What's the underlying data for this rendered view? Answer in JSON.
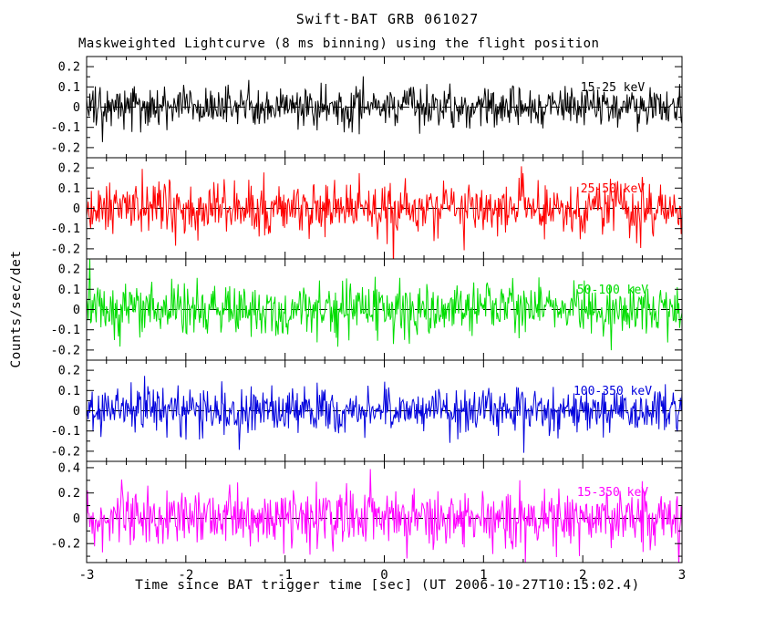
{
  "title": "Swift-BAT GRB 061027",
  "subtitle": "Maskweighted Lightcurve (8 ms binning) using the flight position",
  "xlabel": "Time since BAT trigger time [sec] (UT 2006-10-27T10:15:02.4)",
  "ylabel": "Counts/sec/det",
  "chart_data": {
    "type": "line",
    "description": "Five stacked mask-weighted noise lightcurve panels, one per energy band, 8 ms bins, zero-mean noise with no visible burst signal; dashed horizontal line at 0 in each panel.",
    "x_range": [
      -3,
      3
    ],
    "x_ticks": {
      "values": [
        -3,
        -2,
        -1,
        0,
        1,
        2,
        3
      ],
      "labels": [
        "-3",
        "-2",
        "-1",
        "0",
        "1",
        "2",
        "3"
      ],
      "minor_step": 0.2
    },
    "bin_ms": 8,
    "n_points": 750,
    "zero_line": {
      "value": 0,
      "style": "dashed"
    },
    "grid": false,
    "panels": [
      {
        "label": "15-25 keV",
        "color": "#000000",
        "seed": 101,
        "ylim": [
          -0.25,
          0.25
        ],
        "noise_sigma": 0.052,
        "yticks": {
          "values": [
            0.2,
            0.1,
            0,
            -0.1,
            -0.2
          ],
          "labels": [
            "0.2",
            "0.1",
            "0",
            "-0.1",
            "-0.2"
          ],
          "minor_step": 0.05
        }
      },
      {
        "label": "25-50 keV",
        "color": "#ff0000",
        "seed": 202,
        "ylim": [
          -0.25,
          0.25
        ],
        "noise_sigma": 0.062,
        "yticks": {
          "values": [
            0.2,
            0.1,
            0,
            -0.1,
            -0.2
          ],
          "labels": [
            "0.2",
            "0.1",
            "0",
            "-0.1",
            "-0.2"
          ],
          "minor_step": 0.05
        }
      },
      {
        "label": "50-100 keV",
        "color": "#00dd00",
        "seed": 303,
        "ylim": [
          -0.25,
          0.25
        ],
        "noise_sigma": 0.065,
        "yticks": {
          "values": [
            0.2,
            0.1,
            0,
            -0.1,
            -0.2
          ],
          "labels": [
            "0.2",
            "0.1",
            "0",
            "-0.1",
            "-0.2"
          ],
          "minor_step": 0.05
        }
      },
      {
        "label": "100-350 keV",
        "color": "#0000dd",
        "seed": 404,
        "ylim": [
          -0.25,
          0.25
        ],
        "noise_sigma": 0.057,
        "yticks": {
          "values": [
            0.2,
            0.1,
            0,
            -0.1,
            -0.2
          ],
          "labels": [
            "0.2",
            "0.1",
            "0",
            "-0.1",
            "-0.2"
          ],
          "minor_step": 0.05
        }
      },
      {
        "label": "15-350 keV",
        "color": "#ff00ff",
        "seed": 505,
        "ylim": [
          -0.35,
          0.45
        ],
        "noise_sigma": 0.115,
        "yticks": {
          "values": [
            0.4,
            0.2,
            0,
            -0.2
          ],
          "labels": [
            "0.4",
            "0.2",
            "0",
            "-0.2"
          ],
          "minor_step": 0.1
        }
      }
    ]
  }
}
